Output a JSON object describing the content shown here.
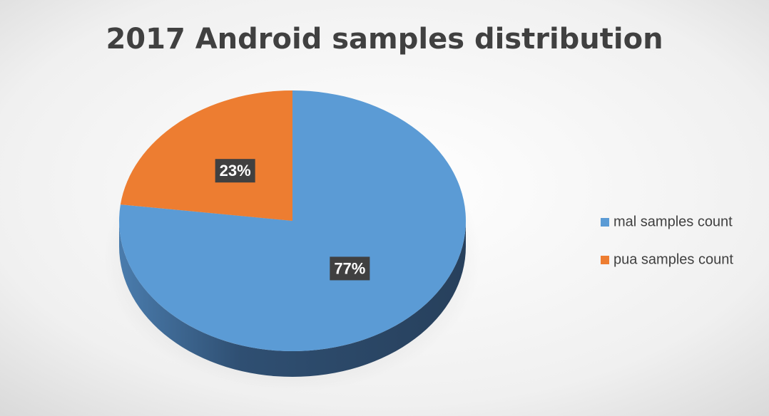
{
  "chart_data": {
    "type": "pie",
    "title": "2017 Android samples distribution",
    "categories": [
      "mal samples count",
      "pua samples count"
    ],
    "values": [
      77,
      23
    ],
    "value_labels": [
      "77%",
      "23%"
    ],
    "colors": [
      "#5b9bd5",
      "#ed7d31"
    ],
    "legend": "right"
  }
}
